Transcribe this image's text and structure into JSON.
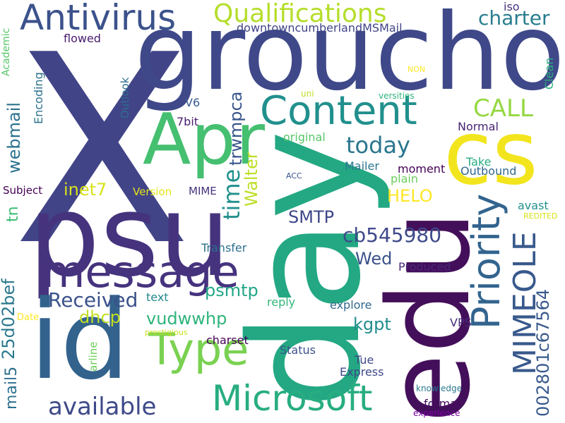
{
  "words": [
    {
      "text": "X",
      "color": "#414487"
    },
    {
      "text": "groucho",
      "color": "#3f4989"
    },
    {
      "text": "day",
      "color": "#23a883"
    },
    {
      "text": "psu",
      "color": "#46337e"
    },
    {
      "text": "id",
      "color": "#33638d"
    },
    {
      "text": "edu",
      "color": "#440f5a"
    },
    {
      "text": "cs",
      "color": "#f2e51d"
    },
    {
      "text": "Apr",
      "color": "#45bf70"
    },
    {
      "text": "message",
      "color": "#46337e"
    },
    {
      "text": "Content",
      "color": "#21908d"
    },
    {
      "text": "Microsoft",
      "color": "#27ad81"
    },
    {
      "text": "Type",
      "color": "#7ad151"
    },
    {
      "text": "Priority",
      "color": "#32648e"
    },
    {
      "text": "Antivirus",
      "color": "#3b528b"
    },
    {
      "text": "Qualifications",
      "color": "#b5de2b"
    },
    {
      "text": "MIMEOLE",
      "color": "#38598c"
    },
    {
      "text": "available",
      "color": "#3e4a89"
    },
    {
      "text": "today",
      "color": "#2a768e"
    },
    {
      "text": "time",
      "color": "#21908d"
    },
    {
      "text": "CALL",
      "color": "#95d840"
    },
    {
      "text": "charter",
      "color": "#287d8e"
    },
    {
      "text": "Received",
      "color": "#3b528b"
    },
    {
      "text": "cb545980",
      "color": "#3e4989"
    },
    {
      "text": "HELO",
      "color": "#fde725"
    },
    {
      "text": "002801c67564",
      "color": "#38598c"
    },
    {
      "text": "25d02bef",
      "color": "#2a788e"
    },
    {
      "text": "SMTP",
      "color": "#3f4789"
    },
    {
      "text": "psmtp",
      "color": "#21a685"
    },
    {
      "text": "webmail",
      "color": "#2c738e"
    },
    {
      "text": "trwmpca",
      "color": "#39568c"
    },
    {
      "text": "Walter",
      "color": "#bddf26"
    },
    {
      "text": "kgpt",
      "color": "#228d8d"
    },
    {
      "text": "inet7",
      "color": "#d8e219"
    },
    {
      "text": "Wed",
      "color": "#3b528b"
    },
    {
      "text": "dhcp",
      "color": "#c2df23"
    },
    {
      "text": "vudwwhp",
      "color": "#2fb47c"
    },
    {
      "text": "mail5",
      "color": "#2d708e"
    },
    {
      "text": "tn",
      "color": "#3dbc74"
    },
    {
      "text": "downtowncumberlandMSMail",
      "color": "#414487"
    },
    {
      "text": "iso",
      "color": "#46337e"
    },
    {
      "text": "flowed",
      "color": "#481b6d"
    },
    {
      "text": "Academic",
      "color": "#56c667"
    },
    {
      "text": "Encoding",
      "color": "#2c718e"
    },
    {
      "text": "Outlook",
      "color": "#2e6d8e"
    },
    {
      "text": "V6",
      "color": "#38598c"
    },
    {
      "text": "7bit",
      "color": "#481f70"
    },
    {
      "text": "Clean",
      "color": "#29af7f"
    },
    {
      "text": "Normal",
      "color": "#482475"
    },
    {
      "text": "NON",
      "color": "#fde725"
    },
    {
      "text": "uni",
      "color": "#c2df23"
    },
    {
      "text": "versities",
      "color": "#2fb47c"
    },
    {
      "text": "original",
      "color": "#56c667"
    },
    {
      "text": "Take",
      "color": "#27ad81"
    },
    {
      "text": "Mailer",
      "color": "#2a768e"
    },
    {
      "text": "moment",
      "color": "#440154"
    },
    {
      "text": "Outbound",
      "color": "#31688e"
    },
    {
      "text": "ACC",
      "color": "#39568c"
    },
    {
      "text": "plain",
      "color": "#6ccd5a"
    },
    {
      "text": "Subject",
      "color": "#440154"
    },
    {
      "text": "Version",
      "color": "#e5e419"
    },
    {
      "text": "MIME",
      "color": "#46337e"
    },
    {
      "text": "avast",
      "color": "#21908d"
    },
    {
      "text": "REDITED",
      "color": "#d8e219"
    },
    {
      "text": "Transfer",
      "color": "#2c718e"
    },
    {
      "text": "Produced",
      "color": "#482878"
    },
    {
      "text": "text",
      "color": "#23898e"
    },
    {
      "text": "reply",
      "color": "#35b779"
    },
    {
      "text": "explore",
      "color": "#31688e"
    },
    {
      "text": "Date",
      "color": "#fde725"
    },
    {
      "text": "prestigious",
      "color": "#c8e020"
    },
    {
      "text": "arline",
      "color": "#6ccd5a"
    },
    {
      "text": "charset",
      "color": "#440154"
    },
    {
      "text": "Status",
      "color": "#3b528b"
    },
    {
      "text": "Tue",
      "color": "#3e4989"
    },
    {
      "text": "Express",
      "color": "#3f4889"
    },
    {
      "text": "VPS",
      "color": "#472c7a"
    },
    {
      "text": "format",
      "color": "#460a5d"
    },
    {
      "text": "knowledge",
      "color": "#2a788e"
    },
    {
      "text": "experience",
      "color": "#7e03a8"
    }
  ]
}
